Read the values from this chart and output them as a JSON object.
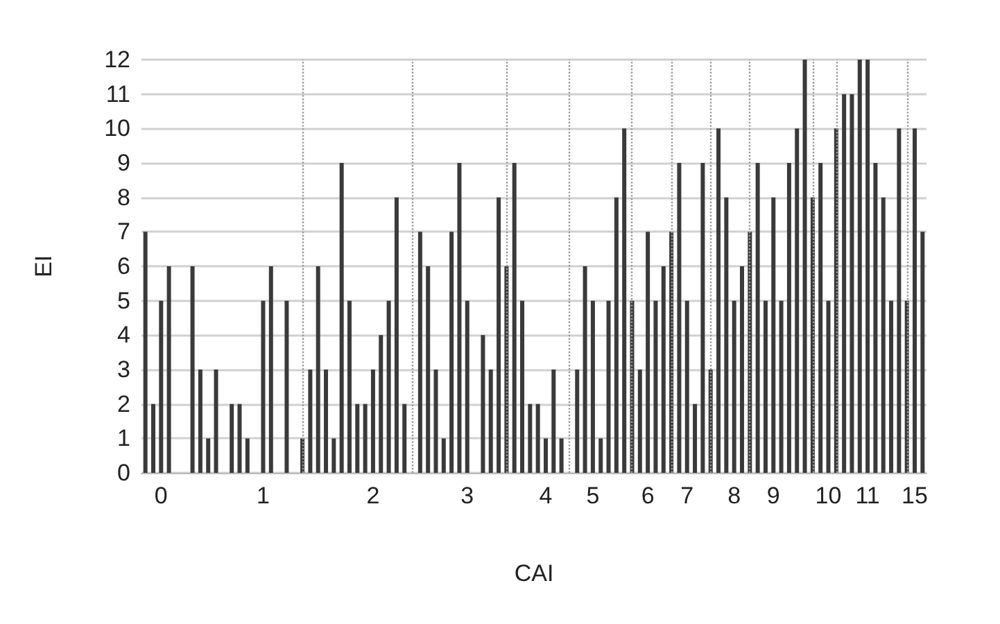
{
  "chart_data": {
    "type": "bar",
    "xlabel": "CAI",
    "ylabel": "EI",
    "categories": [
      null,
      null,
      "0",
      null,
      null,
      null,
      null,
      null,
      null,
      null,
      null,
      null,
      null,
      null,
      null,
      "1",
      null,
      null,
      null,
      null,
      null,
      null,
      null,
      null,
      null,
      null,
      null,
      null,
      null,
      "2",
      null,
      null,
      null,
      null,
      null,
      null,
      null,
      null,
      null,
      null,
      null,
      "3",
      null,
      null,
      null,
      null,
      null,
      null,
      null,
      null,
      null,
      "4",
      null,
      null,
      null,
      null,
      null,
      "5",
      null,
      null,
      null,
      null,
      null,
      null,
      "6",
      null,
      null,
      null,
      null,
      "7",
      null,
      null,
      null,
      null,
      null,
      "8",
      null,
      null,
      null,
      null,
      "9",
      null,
      null,
      null,
      null,
      null,
      null,
      "10",
      null,
      null,
      null,
      null,
      "11",
      null,
      null,
      null,
      null,
      null,
      "15",
      null
    ],
    "values": [
      7,
      2,
      5,
      6,
      0,
      0,
      6,
      3,
      1,
      3,
      0,
      2,
      2,
      1,
      0,
      5,
      6,
      0,
      5,
      0,
      1,
      3,
      6,
      3,
      1,
      9,
      5,
      2,
      2,
      3,
      4,
      5,
      8,
      2,
      0,
      7,
      6,
      3,
      1,
      7,
      9,
      5,
      0,
      4,
      3,
      8,
      6,
      9,
      5,
      2,
      2,
      1,
      3,
      1,
      0,
      3,
      6,
      5,
      1,
      5,
      8,
      10,
      5,
      3,
      7,
      5,
      6,
      7,
      9,
      5,
      2,
      9,
      3,
      10,
      8,
      5,
      6,
      7,
      9,
      5,
      8,
      5,
      9,
      10,
      12,
      8,
      9,
      5,
      10,
      11,
      11,
      12,
      12,
      9,
      8,
      5,
      10,
      5,
      10,
      7
    ],
    "color": "#3a3a3a",
    "ylim": [
      0,
      12
    ],
    "yticks": [
      0,
      1,
      2,
      3,
      4,
      5,
      6,
      7,
      8,
      9,
      10,
      11,
      12
    ],
    "grid": "y"
  }
}
